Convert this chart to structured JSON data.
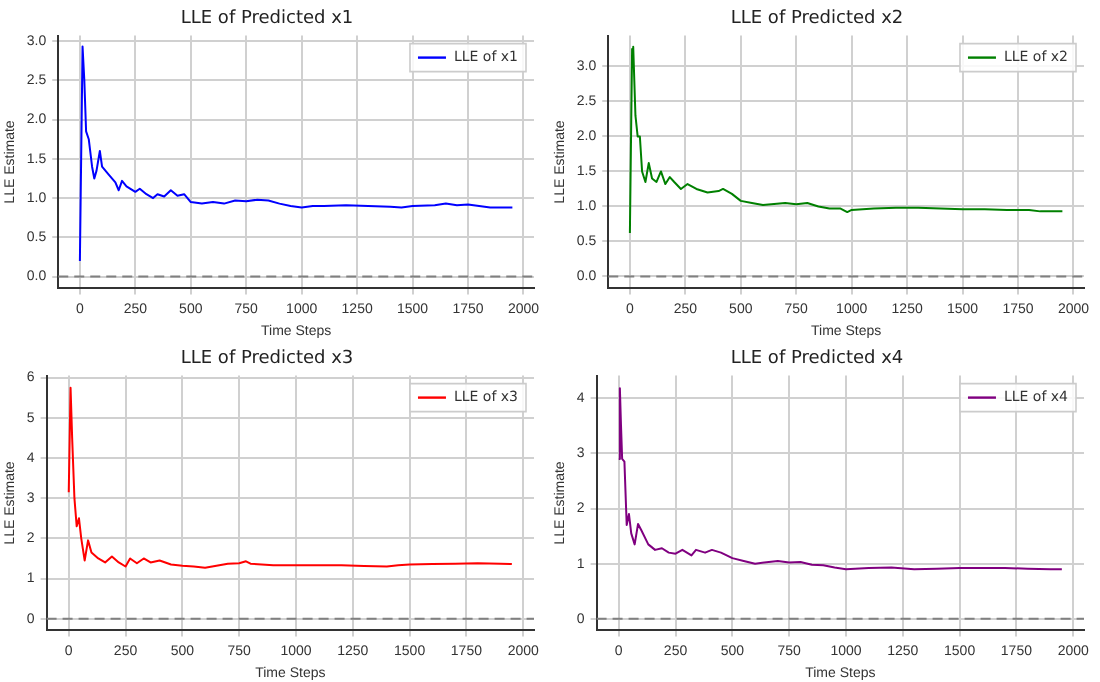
{
  "chart_data": [
    {
      "type": "line",
      "title": "LLE of Predicted x1",
      "xlabel": "Time Steps",
      "ylabel": "LLE Estimate",
      "legend": "top right",
      "grid": true,
      "xlim": [
        -97.5,
        2047.5
      ],
      "xticks": [
        0,
        250,
        500,
        750,
        1000,
        1250,
        1500,
        1750,
        2000
      ],
      "ylim": [
        -0.15,
        3.07
      ],
      "yticks": [
        {
          "value": 0,
          "label": "0.0"
        },
        0.5,
        {
          "value": 1,
          "label": "1.0"
        },
        1.5,
        {
          "value": 2,
          "label": "2.0"
        },
        2.5,
        {
          "value": 3,
          "label": "3.0"
        }
      ],
      "ref_lines": [
        {
          "axis": "y",
          "value": 0,
          "color": "#808080",
          "line_style": "dashed"
        }
      ],
      "series": [
        {
          "name": "LLE of x1",
          "color": "#0000ff",
          "x": [
            0,
            12,
            20,
            28,
            40,
            55,
            65,
            75,
            90,
            100,
            130,
            160,
            175,
            190,
            210,
            250,
            270,
            300,
            330,
            350,
            380,
            410,
            440,
            470,
            500,
            550,
            600,
            650,
            700,
            750,
            800,
            850,
            900,
            950,
            1000,
            1050,
            1100,
            1200,
            1300,
            1400,
            1450,
            1500,
            1600,
            1650,
            1700,
            1750,
            1800,
            1850,
            1900,
            1950
          ],
          "values": [
            0.2,
            2.93,
            2.5,
            1.85,
            1.75,
            1.4,
            1.25,
            1.35,
            1.6,
            1.4,
            1.3,
            1.2,
            1.1,
            1.22,
            1.15,
            1.08,
            1.12,
            1.05,
            1.0,
            1.05,
            1.02,
            1.1,
            1.03,
            1.05,
            0.95,
            0.93,
            0.95,
            0.93,
            0.97,
            0.96,
            0.98,
            0.97,
            0.93,
            0.9,
            0.88,
            0.9,
            0.9,
            0.91,
            0.9,
            0.89,
            0.88,
            0.9,
            0.91,
            0.93,
            0.91,
            0.92,
            0.9,
            0.88,
            0.88,
            0.88
          ]
        }
      ]
    },
    {
      "type": "line",
      "title": "LLE of Predicted x2",
      "xlabel": "Time Steps",
      "ylabel": "LLE Estimate",
      "legend": "top right",
      "grid": true,
      "xlim": [
        -97.5,
        2047.5
      ],
      "xticks": [
        0,
        250,
        500,
        750,
        1000,
        1250,
        1500,
        1750,
        2000
      ],
      "ylim": [
        -0.17,
        3.44
      ],
      "yticks": [
        {
          "value": 0,
          "label": "0.0"
        },
        0.5,
        {
          "value": 1,
          "label": "1.0"
        },
        1.5,
        {
          "value": 2,
          "label": "2.0"
        },
        2.5,
        {
          "value": 3,
          "label": "3.0"
        }
      ],
      "ref_lines": [
        {
          "axis": "y",
          "value": 0,
          "color": "#808080",
          "line_style": "dashed"
        }
      ],
      "series": [
        {
          "name": "LLE of x2",
          "color": "#008000",
          "x": [
            0,
            10,
            15,
            25,
            35,
            45,
            55,
            70,
            85,
            100,
            120,
            140,
            160,
            180,
            200,
            230,
            260,
            300,
            350,
            400,
            420,
            460,
            500,
            550,
            600,
            700,
            750,
            800,
            850,
            900,
            950,
            980,
            1000,
            1100,
            1200,
            1300,
            1400,
            1500,
            1600,
            1700,
            1800,
            1850,
            1950
          ],
          "values": [
            0.62,
            3.25,
            3.28,
            2.3,
            2.0,
            2.0,
            1.5,
            1.35,
            1.62,
            1.4,
            1.35,
            1.5,
            1.32,
            1.42,
            1.35,
            1.25,
            1.32,
            1.25,
            1.2,
            1.22,
            1.25,
            1.18,
            1.08,
            1.05,
            1.02,
            1.05,
            1.03,
            1.05,
            1.0,
            0.97,
            0.97,
            0.92,
            0.95,
            0.97,
            0.98,
            0.98,
            0.97,
            0.96,
            0.96,
            0.95,
            0.95,
            0.93,
            0.93
          ]
        }
      ]
    },
    {
      "type": "line",
      "title": "LLE of Predicted x3",
      "xlabel": "Time Steps",
      "ylabel": "LLE Estimate",
      "legend": "top right",
      "grid": true,
      "xlim": [
        -97.5,
        2047.5
      ],
      "xticks": [
        0,
        250,
        500,
        750,
        1000,
        1250,
        1500,
        1750,
        2000
      ],
      "ylim": [
        -0.29,
        6.05
      ],
      "yticks": [
        0,
        1,
        2,
        3,
        4,
        5,
        6
      ],
      "ref_lines": [
        {
          "axis": "y",
          "value": 0,
          "color": "#808080",
          "line_style": "dashed"
        }
      ],
      "series": [
        {
          "name": "LLE of x3",
          "color": "#ff0000",
          "x": [
            0,
            8,
            15,
            25,
            35,
            45,
            55,
            70,
            85,
            100,
            130,
            160,
            190,
            220,
            250,
            270,
            300,
            330,
            360,
            400,
            450,
            500,
            550,
            600,
            650,
            700,
            750,
            780,
            800,
            900,
            1000,
            1100,
            1200,
            1300,
            1400,
            1450,
            1500,
            1600,
            1700,
            1800,
            1900,
            1950
          ],
          "values": [
            3.15,
            5.75,
            4.5,
            3.0,
            2.3,
            2.5,
            2.0,
            1.45,
            1.95,
            1.65,
            1.5,
            1.4,
            1.55,
            1.4,
            1.3,
            1.5,
            1.38,
            1.5,
            1.4,
            1.45,
            1.35,
            1.32,
            1.3,
            1.27,
            1.32,
            1.37,
            1.38,
            1.43,
            1.37,
            1.33,
            1.33,
            1.33,
            1.33,
            1.31,
            1.3,
            1.33,
            1.35,
            1.36,
            1.37,
            1.38,
            1.37,
            1.36
          ]
        }
      ]
    },
    {
      "type": "line",
      "title": "LLE of Predicted x4",
      "xlabel": "Time Steps",
      "ylabel": "LLE Estimate",
      "legend": "top right",
      "grid": true,
      "xlim": [
        -97.5,
        2047.5
      ],
      "xticks": [
        0,
        250,
        500,
        750,
        1000,
        1250,
        1500,
        1750,
        2000
      ],
      "ylim": [
        -0.21,
        4.41
      ],
      "yticks": [
        0,
        1,
        2,
        3,
        4
      ],
      "ref_lines": [
        {
          "axis": "y",
          "value": 0,
          "color": "#808080",
          "line_style": "dashed"
        }
      ],
      "series": [
        {
          "name": "LLE of x4",
          "color": "#800080",
          "x": [
            0,
            5,
            10,
            15,
            25,
            35,
            45,
            55,
            70,
            85,
            100,
            130,
            160,
            190,
            220,
            250,
            280,
            320,
            340,
            380,
            410,
            450,
            500,
            550,
            600,
            700,
            750,
            800,
            850,
            900,
            950,
            1000,
            1100,
            1200,
            1300,
            1400,
            1500,
            1600,
            1700,
            1800,
            1900,
            1950
          ],
          "values": [
            2.9,
            4.18,
            3.5,
            2.9,
            2.85,
            1.7,
            1.9,
            1.55,
            1.35,
            1.72,
            1.6,
            1.35,
            1.25,
            1.28,
            1.2,
            1.18,
            1.25,
            1.15,
            1.25,
            1.2,
            1.25,
            1.2,
            1.1,
            1.05,
            1.0,
            1.05,
            1.02,
            1.03,
            0.98,
            0.97,
            0.93,
            0.9,
            0.92,
            0.93,
            0.9,
            0.91,
            0.92,
            0.92,
            0.92,
            0.91,
            0.9,
            0.9
          ]
        }
      ]
    }
  ]
}
